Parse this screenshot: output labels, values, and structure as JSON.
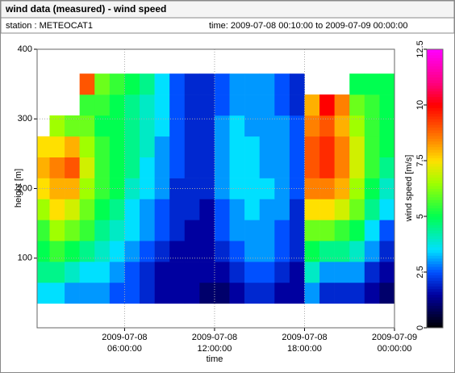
{
  "header": {
    "title": "wind data (measured) - wind speed",
    "station": "station : METEOCAT1",
    "time": "time: 2009-07-08 00:10:00 to 2009-07-09 00:00:00"
  },
  "chart_data": {
    "type": "heatmap",
    "xlabel": "time",
    "ylabel": "height [m]",
    "colorbar_label": "wind speed [m/s]",
    "xlim": [
      0.1667,
      24
    ],
    "ylim": [
      0,
      400
    ],
    "xticks": [
      {
        "value": 6,
        "label": "2009-07-08 06:00:00"
      },
      {
        "value": 12,
        "label": "2009-07-08 12:00:00"
      },
      {
        "value": 18,
        "label": "2009-07-08 18:00:00"
      },
      {
        "value": 24,
        "label": "2009-07-09 00:00:00"
      }
    ],
    "yticks": [
      100,
      200,
      300,
      400
    ],
    "grid": true,
    "clim": [
      0,
      12.5
    ],
    "cticks": [
      0,
      2.5,
      5,
      {
        "value": 7.5,
        "label": "7.5"
      },
      10,
      12.5
    ],
    "colormap": [
      [
        0,
        "#000000"
      ],
      [
        1.5,
        "#0000a0"
      ],
      [
        2.5,
        "#0050ff"
      ],
      [
        3.5,
        "#00e0ff"
      ],
      [
        5,
        "#00ff50"
      ],
      [
        6.5,
        "#a0ff00"
      ],
      [
        7.5,
        "#ffe000"
      ],
      [
        8.5,
        "#ff8000"
      ],
      [
        10,
        "#ff0000"
      ],
      [
        11,
        "#ff0080"
      ],
      [
        12.5,
        "#ff00ff"
      ]
    ],
    "x": [
      0.5,
      1.5,
      2.5,
      3.5,
      4.5,
      5.5,
      6.5,
      7.5,
      8.5,
      9.5,
      10.5,
      11.5,
      12.5,
      13.5,
      14.5,
      15.5,
      16.5,
      17.5,
      18.5,
      19.5,
      20.5,
      21.5,
      22.5,
      23.5
    ],
    "heights": [
      50,
      80,
      110,
      140,
      170,
      200,
      230,
      260,
      290,
      320,
      350
    ],
    "cell_width": 1,
    "cell_height": 30,
    "z": [
      [
        3.5,
        3.5,
        3,
        3,
        3,
        2.5,
        2.5,
        2,
        1.5,
        1.5,
        1.5,
        1,
        1,
        1.5,
        2,
        2,
        1.5,
        1.5,
        3,
        2,
        2,
        2,
        1.5,
        1
      ],
      [
        4.5,
        4.5,
        4,
        3.5,
        3.5,
        3,
        2.5,
        2,
        1.5,
        1.5,
        1.5,
        1.5,
        1.5,
        2,
        2.5,
        2.5,
        2,
        1.5,
        4,
        3,
        3,
        3,
        2,
        1.5
      ],
      [
        5,
        5.5,
        5,
        4.5,
        4,
        3.5,
        3,
        2.5,
        2,
        1.5,
        1.5,
        1.5,
        2,
        2.5,
        3,
        3,
        2.5,
        2,
        5,
        4.5,
        4.5,
        4,
        3,
        2
      ],
      [
        5.5,
        6.5,
        6,
        5.5,
        4.5,
        4,
        3.5,
        3,
        2.5,
        2,
        1.5,
        1.5,
        2.5,
        3,
        3,
        3,
        2.5,
        2,
        6,
        6,
        5.5,
        5,
        3.5,
        2.5
      ],
      [
        6.5,
        7.5,
        7,
        6,
        5,
        4.5,
        3.5,
        3,
        2.5,
        2,
        2,
        1.5,
        2.5,
        3,
        3.5,
        3,
        3,
        2,
        7.5,
        7.5,
        7,
        6,
        4.5,
        3.5
      ],
      [
        7.5,
        8,
        8,
        6.5,
        5.5,
        5,
        4,
        3.5,
        3,
        2,
        2,
        2,
        3,
        3.5,
        3.5,
        3.5,
        3,
        2.5,
        8.5,
        8.5,
        8,
        6.5,
        5,
        4
      ],
      [
        8,
        8.5,
        9,
        7,
        5.5,
        5,
        4.5,
        3.5,
        3,
        2.5,
        2,
        2,
        3,
        3.5,
        3.5,
        3,
        3,
        2.5,
        9,
        9.5,
        8.5,
        7,
        5.5,
        4.5
      ],
      [
        7.5,
        7.5,
        8,
        6.5,
        5.5,
        5,
        4.5,
        4,
        3,
        2.5,
        2,
        2,
        3,
        3.5,
        3.5,
        3,
        3,
        2.5,
        9,
        9.5,
        8.5,
        7,
        5.5,
        5
      ],
      [
        null,
        6.5,
        6,
        6,
        5,
        5,
        4.5,
        4,
        3.5,
        2.5,
        2,
        2,
        3,
        3.5,
        3,
        3,
        3,
        2.5,
        8.5,
        9,
        8,
        6.5,
        5.5,
        5
      ],
      [
        null,
        null,
        null,
        5.5,
        5.5,
        5,
        4.5,
        4,
        3.5,
        2.5,
        2,
        2,
        2.5,
        3,
        3,
        3,
        2.5,
        2,
        8,
        10,
        8.5,
        6,
        5.5,
        5
      ],
      [
        null,
        null,
        null,
        9,
        6,
        5.5,
        5,
        4.5,
        3.5,
        2.5,
        2,
        2,
        2.5,
        3,
        3,
        3,
        2.5,
        2,
        null,
        null,
        null,
        5,
        5,
        5
      ]
    ]
  }
}
